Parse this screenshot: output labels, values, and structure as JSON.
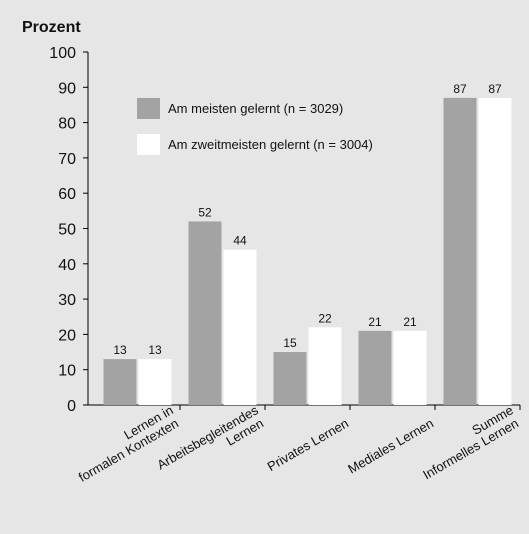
{
  "chart_data": {
    "type": "bar",
    "y_label": "Prozent",
    "categories": [
      [
        "Lernen in",
        "formalen Kontexten"
      ],
      [
        "Arbeitsbegleitendes",
        "Lernen"
      ],
      [
        "Privates Lernen"
      ],
      [
        "Mediales Lernen"
      ],
      [
        "Summe",
        "Informelles Lernen"
      ]
    ],
    "series": [
      {
        "name": "Am meisten gelernt (n = 3029)",
        "color": "#a3a3a3",
        "values": [
          13,
          52,
          15,
          21,
          87
        ]
      },
      {
        "name": "Am zweitmeisten gelernt (n = 3004)",
        "color": "#ffffff",
        "values": [
          13,
          44,
          22,
          21,
          87
        ]
      }
    ],
    "ylim": [
      0,
      100
    ],
    "yticks": [
      0,
      10,
      20,
      30,
      40,
      50,
      60,
      70,
      80,
      90,
      100
    ],
    "grid": false
  }
}
